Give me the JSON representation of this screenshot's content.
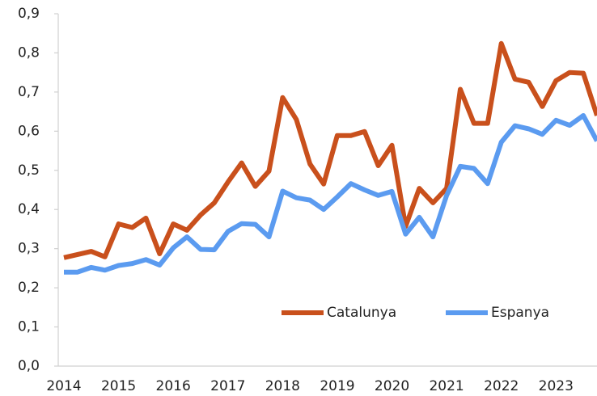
{
  "chart_data": {
    "type": "line",
    "categories": [
      "2014",
      null,
      null,
      null,
      "2015",
      null,
      null,
      null,
      "2016",
      null,
      null,
      null,
      "2017",
      null,
      null,
      null,
      "2018",
      null,
      null,
      null,
      "2019",
      null,
      null,
      null,
      "2020",
      null,
      null,
      null,
      "2021",
      null,
      null,
      null,
      "2022",
      null,
      null,
      null,
      "2023",
      null,
      null,
      null
    ],
    "series": [
      {
        "name": "Catalunya",
        "color": "#c9501c",
        "values": [
          0.277,
          0.285,
          0.293,
          0.279,
          0.363,
          0.354,
          0.378,
          0.287,
          0.363,
          0.347,
          0.386,
          0.417,
          0.47,
          0.519,
          0.459,
          0.498,
          0.686,
          0.63,
          0.516,
          0.465,
          0.589,
          0.589,
          0.599,
          0.512,
          0.564,
          0.357,
          0.454,
          0.417,
          0.454,
          0.707,
          0.62,
          0.62,
          0.824,
          0.733,
          0.725,
          0.663,
          0.729,
          0.75,
          0.748,
          0.64
        ]
      },
      {
        "name": "Espanya",
        "color": "#5b9bf0",
        "values": [
          0.24,
          0.24,
          0.252,
          0.245,
          0.257,
          0.262,
          0.272,
          0.258,
          0.302,
          0.33,
          0.298,
          0.297,
          0.344,
          0.364,
          0.362,
          0.33,
          0.447,
          0.43,
          0.424,
          0.4,
          0.432,
          0.466,
          0.45,
          0.436,
          0.446,
          0.337,
          0.38,
          0.33,
          0.436,
          0.51,
          0.505,
          0.466,
          0.572,
          0.614,
          0.606,
          0.592,
          0.628,
          0.615,
          0.64,
          0.575
        ]
      }
    ],
    "ylim": [
      0,
      0.9
    ],
    "yticks": [
      {
        "value": 0,
        "label": "0,0"
      },
      {
        "value": 0.1,
        "label": "0,1"
      },
      {
        "value": 0.2,
        "label": "0,2"
      },
      {
        "value": 0.3,
        "label": "0,3"
      },
      {
        "value": 0.4,
        "label": "0,4"
      },
      {
        "value": 0.5,
        "label": "0,5"
      },
      {
        "value": 0.6,
        "label": "0,6"
      },
      {
        "value": 0.7,
        "label": "0,7"
      },
      {
        "value": 0.8,
        "label": "0,8"
      },
      {
        "value": 0.9,
        "label": "0,9"
      }
    ],
    "legend": "lower right",
    "grid": false
  }
}
